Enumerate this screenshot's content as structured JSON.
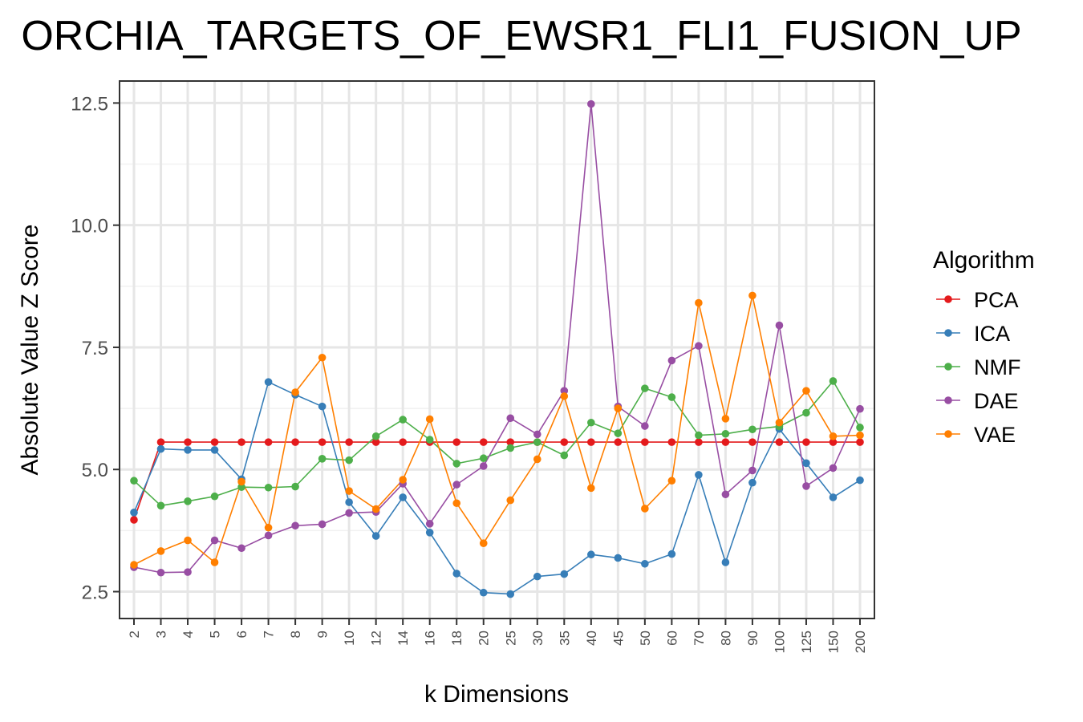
{
  "chart_data": {
    "type": "line",
    "title": "ORCHIA_TARGETS_OF_EWSR1_FLI1_FUSION_UP",
    "xlabel": "k Dimensions",
    "ylabel": "Absolute Value Z Score",
    "categories": [
      "2",
      "3",
      "4",
      "5",
      "6",
      "7",
      "8",
      "9",
      "10",
      "12",
      "14",
      "16",
      "18",
      "20",
      "25",
      "30",
      "35",
      "40",
      "45",
      "50",
      "60",
      "70",
      "80",
      "90",
      "100",
      "125",
      "150",
      "200"
    ],
    "ylim": [
      1.95,
      12.95
    ],
    "yticks": [
      2.5,
      5.0,
      7.5,
      10.0,
      12.5
    ],
    "ytick_labels": [
      "2.5",
      "5.0",
      "7.5",
      "10.0",
      "12.5"
    ],
    "grid": true,
    "legend": {
      "title": "Algorithm",
      "position": "right"
    },
    "series": [
      {
        "name": "PCA",
        "color": "#e41a1c",
        "values": [
          3.97,
          5.56,
          5.56,
          5.56,
          5.56,
          5.56,
          5.56,
          5.56,
          5.56,
          5.56,
          5.56,
          5.56,
          5.56,
          5.56,
          5.56,
          5.56,
          5.56,
          5.56,
          5.56,
          5.56,
          5.56,
          5.56,
          5.56,
          5.56,
          5.56,
          5.56,
          5.56,
          5.56
        ]
      },
      {
        "name": "ICA",
        "color": "#377eb8",
        "values": [
          4.12,
          5.42,
          5.4,
          5.4,
          4.8,
          6.79,
          6.53,
          6.29,
          4.33,
          3.64,
          4.43,
          3.71,
          2.87,
          2.48,
          2.45,
          2.81,
          2.86,
          3.26,
          3.19,
          3.07,
          3.27,
          4.89,
          3.1,
          4.73,
          5.83,
          5.13,
          4.43,
          4.78
        ]
      },
      {
        "name": "NMF",
        "color": "#4daf4a",
        "values": [
          4.77,
          4.26,
          4.35,
          4.45,
          4.64,
          4.63,
          4.65,
          5.22,
          5.19,
          5.68,
          6.02,
          5.61,
          5.12,
          5.23,
          5.44,
          5.56,
          5.29,
          5.96,
          5.74,
          6.66,
          6.48,
          5.7,
          5.73,
          5.82,
          5.88,
          6.16,
          6.81,
          5.86
        ]
      },
      {
        "name": "DAE",
        "color": "#984ea3",
        "values": [
          3.0,
          2.89,
          2.9,
          3.55,
          3.39,
          3.65,
          3.85,
          3.88,
          4.11,
          4.13,
          4.71,
          3.89,
          4.69,
          5.07,
          6.05,
          5.72,
          6.61,
          12.48,
          6.29,
          5.89,
          7.23,
          7.53,
          4.49,
          4.98,
          7.95,
          4.66,
          5.03,
          6.24
        ]
      },
      {
        "name": "VAE",
        "color": "#ff7f00",
        "values": [
          3.05,
          3.33,
          3.55,
          3.1,
          4.75,
          3.81,
          6.58,
          7.29,
          4.56,
          4.19,
          4.79,
          6.03,
          4.31,
          3.49,
          4.37,
          5.21,
          6.5,
          4.62,
          6.25,
          4.2,
          4.77,
          8.41,
          6.04,
          8.56,
          5.96,
          6.61,
          5.68,
          5.7
        ]
      }
    ]
  }
}
